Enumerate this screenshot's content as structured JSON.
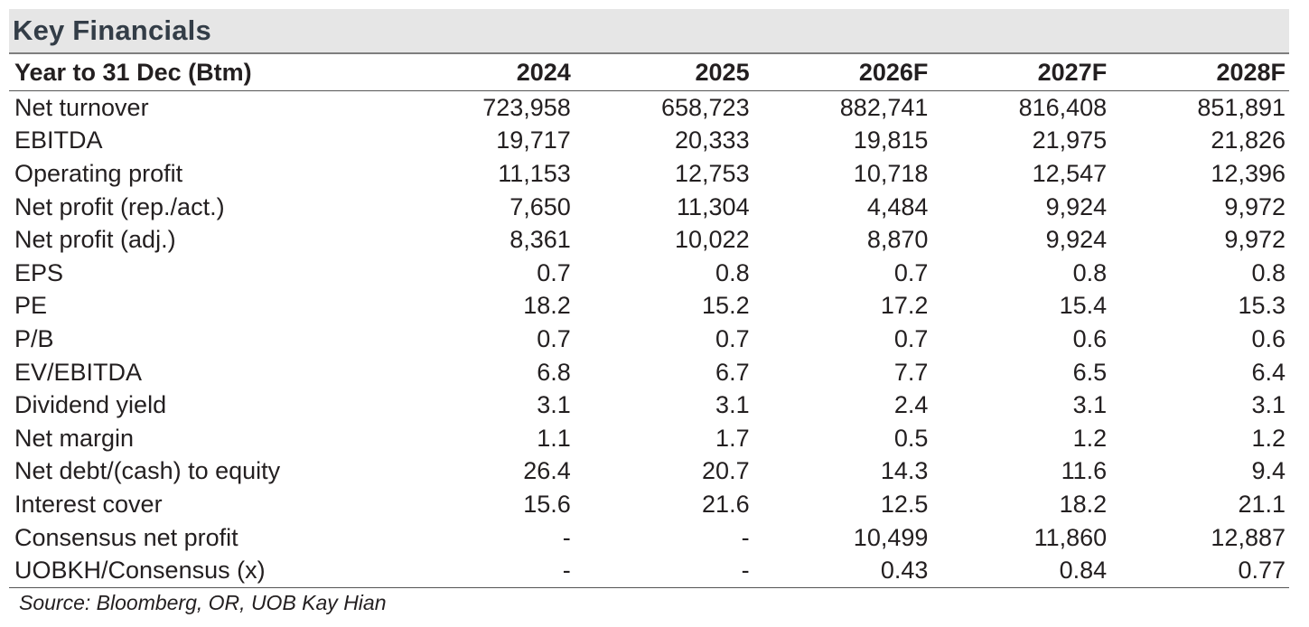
{
  "title": "Key Financials",
  "header": {
    "label": "Year to 31 Dec (Btm)",
    "years": [
      "2024",
      "2025",
      "2026F",
      "2027F",
      "2028F"
    ]
  },
  "rows": [
    {
      "label": "Net turnover",
      "values": [
        "723,958",
        "658,723",
        "882,741",
        "816,408",
        "851,891"
      ]
    },
    {
      "label": "EBITDA",
      "values": [
        "19,717",
        "20,333",
        "19,815",
        "21,975",
        "21,826"
      ]
    },
    {
      "label": "Operating profit",
      "values": [
        "11,153",
        "12,753",
        "10,718",
        "12,547",
        "12,396"
      ]
    },
    {
      "label": "Net profit (rep./act.)",
      "values": [
        "7,650",
        "11,304",
        "4,484",
        "9,924",
        "9,972"
      ]
    },
    {
      "label": "Net profit (adj.)",
      "values": [
        "8,361",
        "10,022",
        "8,870",
        "9,924",
        "9,972"
      ]
    },
    {
      "label": "EPS",
      "values": [
        "0.7",
        "0.8",
        "0.7",
        "0.8",
        "0.8"
      ]
    },
    {
      "label": "PE",
      "values": [
        "18.2",
        "15.2",
        "17.2",
        "15.4",
        "15.3"
      ]
    },
    {
      "label": "P/B",
      "values": [
        "0.7",
        "0.7",
        "0.7",
        "0.6",
        "0.6"
      ]
    },
    {
      "label": "EV/EBITDA",
      "values": [
        "6.8",
        "6.7",
        "7.7",
        "6.5",
        "6.4"
      ]
    },
    {
      "label": "Dividend yield",
      "values": [
        "3.1",
        "3.1",
        "2.4",
        "3.1",
        "3.1"
      ]
    },
    {
      "label": "Net margin",
      "values": [
        "1.1",
        "1.7",
        "0.5",
        "1.2",
        "1.2"
      ]
    },
    {
      "label": "Net debt/(cash) to equity",
      "values": [
        "26.4",
        "20.7",
        "14.3",
        "11.6",
        "9.4"
      ]
    },
    {
      "label": "Interest cover",
      "values": [
        "15.6",
        "21.6",
        "12.5",
        "18.2",
        "21.1"
      ]
    },
    {
      "label": "Consensus net profit",
      "values": [
        "-",
        "-",
        "10,499",
        "11,860",
        "12,887"
      ]
    },
    {
      "label": "UOBKH/Consensus (x)",
      "values": [
        "-",
        "-",
        "0.43",
        "0.84",
        "0.77"
      ]
    }
  ],
  "source": "Source: Bloomberg, OR, UOB Kay Hian"
}
